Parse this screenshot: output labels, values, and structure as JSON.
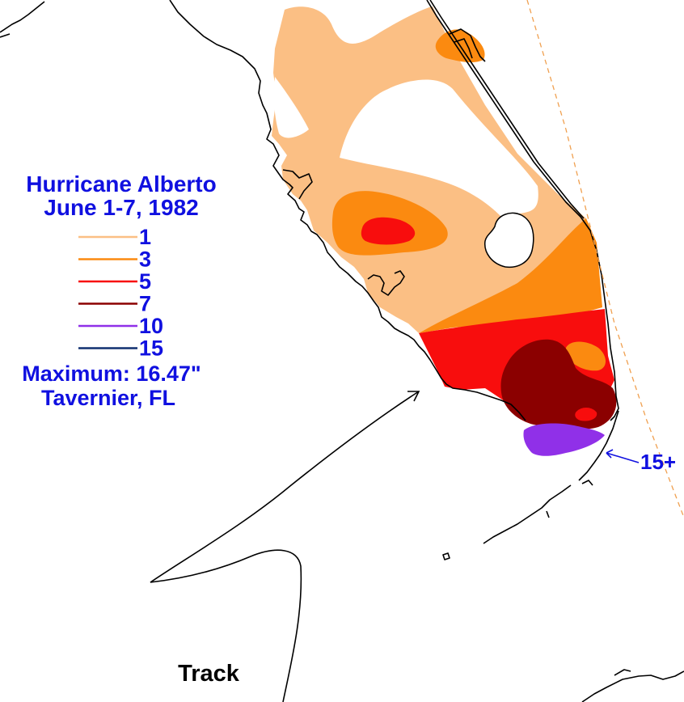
{
  "title": {
    "line1": "Hurricane Alberto",
    "line2": "June 1-7, 1982"
  },
  "legend": [
    {
      "label": "1",
      "color": "#fbbf84"
    },
    {
      "label": "3",
      "color": "#fb8a10"
    },
    {
      "label": "5",
      "color": "#f80d0d"
    },
    {
      "label": "7",
      "color": "#8b0000"
    },
    {
      "label": "10",
      "color": "#9030e8"
    },
    {
      "label": "15",
      "color": "#103070"
    }
  ],
  "maximum": {
    "line1": "Maximum: 16.47\"",
    "line2": "Tavernier, FL"
  },
  "callout": "15+",
  "track_label": "Track",
  "colors": {
    "text": "#1010e0",
    "coast": "#000000",
    "track_dash": "#f0a050"
  }
}
